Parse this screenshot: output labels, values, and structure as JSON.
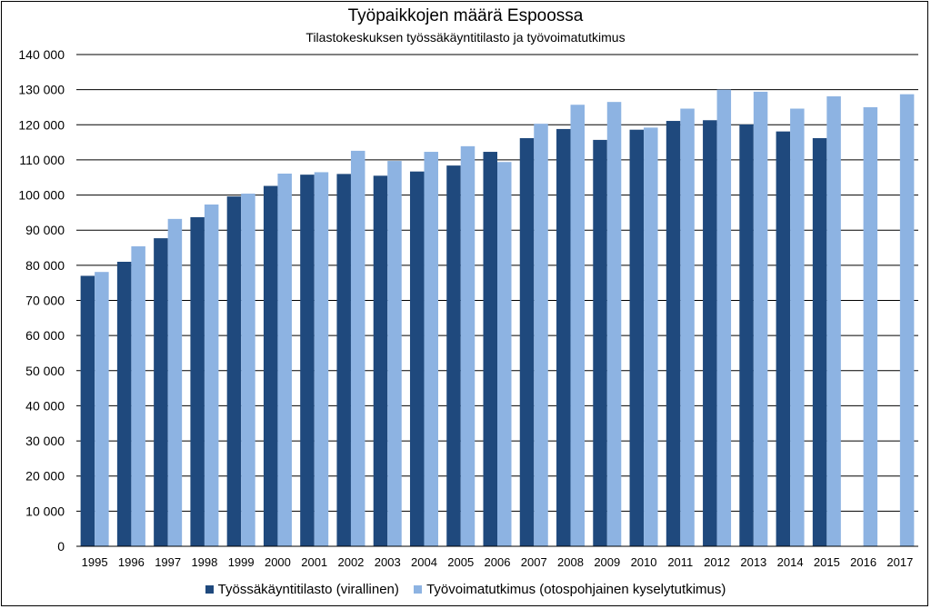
{
  "chart_data": {
    "type": "bar",
    "title": "Työpaikkojen määrä Espoossa",
    "subtitle": "Tilastokeskuksen työssäkäyntitilasto ja työvoimatutkimus",
    "xlabel": "",
    "ylabel": "",
    "ylim": [
      0,
      140000
    ],
    "ytick_step": 10000,
    "ytick_labels": [
      "0",
      "10 000",
      "20 000",
      "30 000",
      "40 000",
      "50 000",
      "60 000",
      "70 000",
      "80 000",
      "90 000",
      "100 000",
      "110 000",
      "120 000",
      "130 000",
      "140 000"
    ],
    "categories": [
      "1995",
      "1996",
      "1997",
      "1998",
      "1999",
      "2000",
      "2001",
      "2002",
      "2003",
      "2004",
      "2005",
      "2006",
      "2007",
      "2008",
      "2009",
      "2010",
      "2011",
      "2012",
      "2013",
      "2014",
      "2015",
      "2016",
      "2017"
    ],
    "grid": true,
    "legend_position": "bottom",
    "series": [
      {
        "name": "Työssäkäyntitilasto (virallinen)",
        "color": "#1f497d",
        "values": [
          77000,
          81000,
          87700,
          93700,
          99600,
          102600,
          105800,
          106000,
          105500,
          106700,
          108400,
          112300,
          116200,
          118800,
          115700,
          118600,
          121100,
          121300,
          120100,
          118100,
          116200,
          null,
          null
        ]
      },
      {
        "name": "Työvoimatutkimus (otospohjainen kyselytutkimus)",
        "color": "#8db3e2",
        "values": [
          78100,
          85400,
          93200,
          97300,
          100400,
          106100,
          106500,
          112600,
          109700,
          112300,
          113900,
          109400,
          120300,
          125700,
          126500,
          119200,
          124600,
          130000,
          129400,
          124600,
          128100,
          125000,
          128700
        ]
      }
    ]
  }
}
